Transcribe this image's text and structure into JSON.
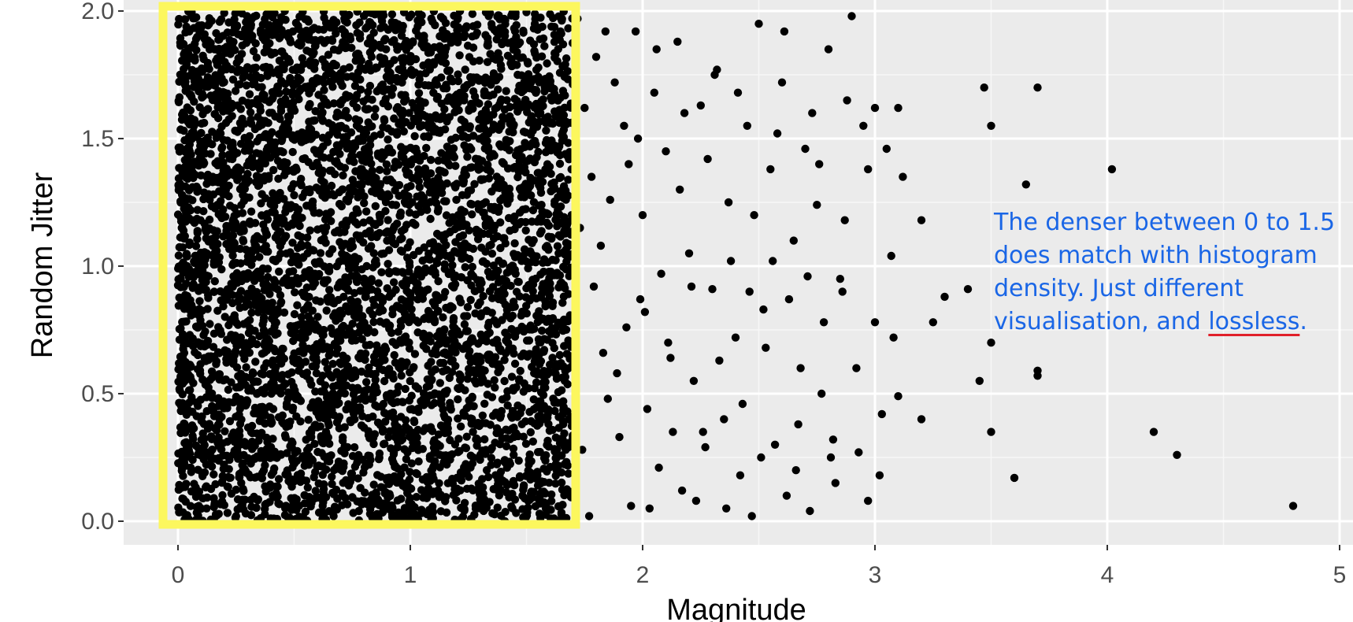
{
  "chart_data": {
    "type": "scatter",
    "xlabel": "Magnitude",
    "ylabel": "Random Jitter",
    "xlim": [
      -0.23,
      5.03
    ],
    "ylim": [
      -0.08,
      2.04
    ],
    "x_ticks": [
      "0",
      "1",
      "2",
      "3",
      "4",
      "5"
    ],
    "y_ticks": [
      "0.0",
      "0.5",
      "1.0",
      "1.5",
      "2.0"
    ],
    "grid": true,
    "point_color": "#000000",
    "panel_color": "#ebebeb",
    "dense_region": {
      "x_range": [
        0,
        1.7
      ],
      "y_range": [
        0,
        2.0
      ],
      "approx_point_count": 5000,
      "highlight_color": "#fcf75e"
    },
    "sparse_points": [
      [
        1.72,
        1.97
      ],
      [
        1.75,
        1.62
      ],
      [
        1.78,
        1.35
      ],
      [
        1.8,
        1.82
      ],
      [
        1.82,
        1.08
      ],
      [
        1.85,
        0.48
      ],
      [
        1.88,
        1.72
      ],
      [
        1.9,
        0.33
      ],
      [
        1.92,
        1.55
      ],
      [
        1.95,
        0.06
      ],
      [
        1.97,
        1.92
      ],
      [
        1.99,
        0.87
      ],
      [
        2.0,
        1.2
      ],
      [
        2.02,
        0.44
      ],
      [
        2.05,
        1.68
      ],
      [
        2.07,
        0.21
      ],
      [
        2.08,
        0.97
      ],
      [
        2.1,
        1.45
      ],
      [
        2.12,
        0.64
      ],
      [
        2.15,
        1.88
      ],
      [
        2.17,
        0.12
      ],
      [
        2.2,
        1.05
      ],
      [
        2.22,
        0.55
      ],
      [
        2.25,
        1.63
      ],
      [
        2.27,
        0.29
      ],
      [
        2.3,
        0.91
      ],
      [
        2.32,
        1.77
      ],
      [
        2.35,
        0.4
      ],
      [
        2.37,
        1.25
      ],
      [
        2.4,
        0.72
      ],
      [
        2.42,
        0.18
      ],
      [
        2.45,
        1.55
      ],
      [
        2.47,
        0.02
      ],
      [
        2.5,
        1.95
      ],
      [
        2.52,
        0.83
      ],
      [
        2.55,
        1.38
      ],
      [
        2.57,
        0.3
      ],
      [
        2.6,
        1.72
      ],
      [
        2.62,
        0.1
      ],
      [
        2.65,
        1.1
      ],
      [
        2.68,
        0.6
      ],
      [
        2.7,
        1.46
      ],
      [
        2.72,
        0.04
      ],
      [
        2.75,
        1.24
      ],
      [
        2.78,
        0.78
      ],
      [
        2.8,
        1.85
      ],
      [
        2.82,
        0.32
      ],
      [
        2.85,
        0.95
      ],
      [
        2.87,
        1.18
      ],
      [
        2.9,
        1.98
      ],
      [
        2.92,
        0.6
      ],
      [
        2.95,
        1.55
      ],
      [
        2.97,
        0.08
      ],
      [
        3.0,
        0.78
      ],
      [
        3.0,
        1.62
      ],
      [
        3.02,
        0.18
      ],
      [
        3.03,
        0.42
      ],
      [
        3.05,
        1.46
      ],
      [
        3.07,
        1.04
      ],
      [
        3.08,
        0.72
      ],
      [
        3.1,
        1.62
      ],
      [
        3.1,
        0.49
      ],
      [
        3.12,
        1.35
      ],
      [
        3.2,
        1.18
      ],
      [
        3.2,
        0.4
      ],
      [
        3.25,
        0.78
      ],
      [
        3.3,
        0.88
      ],
      [
        3.4,
        0.91
      ],
      [
        3.45,
        0.55
      ],
      [
        3.47,
        1.7
      ],
      [
        3.5,
        1.55
      ],
      [
        3.5,
        0.7
      ],
      [
        3.5,
        0.35
      ],
      [
        3.6,
        0.17
      ],
      [
        3.65,
        1.32
      ],
      [
        3.7,
        1.7
      ],
      [
        3.7,
        0.59
      ],
      [
        3.7,
        0.57
      ],
      [
        4.02,
        1.38
      ],
      [
        4.2,
        0.35
      ],
      [
        4.3,
        0.26
      ],
      [
        4.8,
        0.06
      ],
      [
        1.74,
        0.28
      ],
      [
        1.77,
        0.02
      ],
      [
        1.83,
        0.66
      ],
      [
        1.86,
        1.26
      ],
      [
        1.93,
        0.76
      ],
      [
        1.98,
        1.5
      ],
      [
        2.03,
        0.05
      ],
      [
        2.13,
        0.35
      ],
      [
        2.18,
        1.6
      ],
      [
        2.23,
        0.08
      ],
      [
        2.28,
        1.42
      ],
      [
        2.33,
        0.63
      ],
      [
        2.38,
        1.02
      ],
      [
        2.43,
        0.46
      ],
      [
        2.48,
        1.2
      ],
      [
        2.53,
        0.68
      ],
      [
        2.58,
        1.52
      ],
      [
        2.63,
        0.87
      ],
      [
        2.67,
        0.38
      ],
      [
        2.73,
        1.6
      ],
      [
        2.77,
        0.5
      ],
      [
        2.83,
        0.15
      ],
      [
        2.88,
        1.65
      ],
      [
        2.93,
        0.27
      ],
      [
        2.97,
        1.38
      ],
      [
        1.73,
        1.15
      ],
      [
        1.79,
        0.92
      ],
      [
        1.84,
        1.92
      ],
      [
        1.89,
        0.58
      ],
      [
        1.94,
        1.4
      ],
      [
        2.01,
        0.82
      ],
      [
        2.06,
        1.85
      ],
      [
        2.11,
        0.7
      ],
      [
        2.16,
        1.3
      ],
      [
        2.21,
        0.92
      ],
      [
        2.26,
        0.35
      ],
      [
        2.31,
        1.75
      ],
      [
        2.36,
        0.05
      ],
      [
        2.41,
        1.68
      ],
      [
        2.46,
        0.9
      ],
      [
        2.51,
        0.25
      ],
      [
        2.56,
        1.02
      ],
      [
        2.61,
        1.92
      ],
      [
        2.66,
        0.2
      ],
      [
        2.71,
        0.96
      ],
      [
        2.76,
        1.4
      ],
      [
        2.81,
        0.25
      ],
      [
        2.86,
        0.9
      ]
    ]
  },
  "annotation": {
    "lines": [
      "The denser between 0 to 1.5",
      "does match with histogram",
      "density. Just different"
    ],
    "last_line_prefix": "visualisation, and ",
    "last_line_underlined": "lossless",
    "last_line_suffix": ".",
    "text_color": "#1a66e6",
    "underline_color": "#e0202a"
  }
}
